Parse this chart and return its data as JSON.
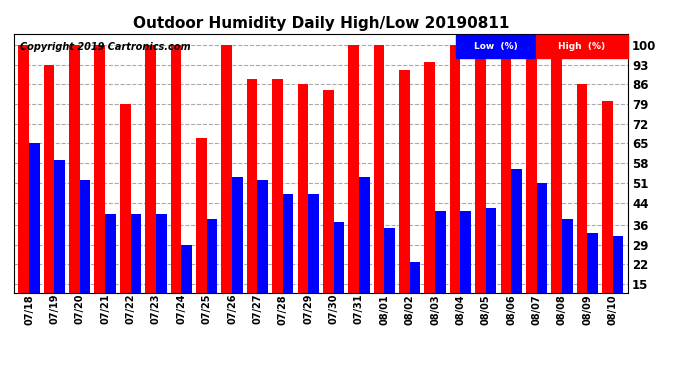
{
  "title": "Outdoor Humidity Daily High/Low 20190811",
  "copyright": "Copyright 2019 Cartronics.com",
  "dates": [
    "07/18",
    "07/19",
    "07/20",
    "07/21",
    "07/22",
    "07/23",
    "07/24",
    "07/25",
    "07/26",
    "07/27",
    "07/28",
    "07/29",
    "07/30",
    "07/31",
    "08/01",
    "08/02",
    "08/03",
    "08/04",
    "08/05",
    "08/06",
    "08/07",
    "08/08",
    "08/09",
    "08/10"
  ],
  "high": [
    100,
    93,
    100,
    100,
    79,
    100,
    100,
    67,
    100,
    88,
    88,
    86,
    84,
    100,
    100,
    91,
    94,
    100,
    100,
    100,
    100,
    100,
    86,
    80
  ],
  "low": [
    65,
    59,
    52,
    40,
    40,
    40,
    29,
    38,
    53,
    52,
    47,
    47,
    37,
    53,
    35,
    23,
    41,
    41,
    42,
    56,
    51,
    38,
    33,
    32
  ],
  "bar_color_high": "#FF0000",
  "bar_color_low": "#0000FF",
  "bg_color": "#FFFFFF",
  "plot_bg_color": "#FFFFFF",
  "grid_color": "#AAAAAA",
  "title_fontsize": 11,
  "copyright_fontsize": 7,
  "yticks": [
    15,
    22,
    29,
    36,
    44,
    51,
    58,
    65,
    72,
    79,
    86,
    93,
    100
  ],
  "ylim": [
    12,
    104
  ],
  "legend_low_label": "Low  (%)",
  "legend_high_label": "High  (%)"
}
